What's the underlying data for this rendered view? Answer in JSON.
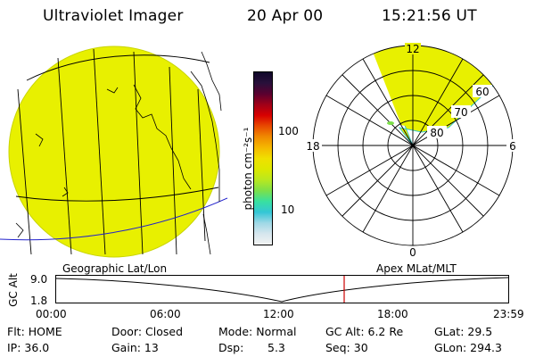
{
  "header": {
    "instrument": "Ultraviolet Imager",
    "date": "20 Apr 00",
    "time": "15:21:56 UT"
  },
  "colorbar": {
    "unit_label": "photon cm⁻²s⁻¹",
    "tick_100": "100",
    "tick_10": "10",
    "colors": [
      "#f2f2f2",
      "#d6e6ee",
      "#9fd8e6",
      "#34c6d6",
      "#38e0a0",
      "#7ce04a",
      "#b8e820",
      "#dde800",
      "#f0e000",
      "#f5b800",
      "#f08a00",
      "#e84a00",
      "#d80000",
      "#a00018",
      "#5a0030",
      "#28103a",
      "#10082a"
    ]
  },
  "polar_plot": {
    "label_top": "12",
    "label_bottom": "0",
    "label_left": "18",
    "label_right": "6",
    "ring_labels": [
      "60",
      "70",
      "80"
    ]
  },
  "geo_plot": {
    "fill_color": "#e8f000"
  },
  "timeline": {
    "left_label": "Geographic Lat/Lon",
    "right_label": "Apex MLat/MLT",
    "axis_title": "GC Alt",
    "y_top": "9.0",
    "y_bottom": "1.8",
    "ticks": [
      "00:00",
      "06:00",
      "12:00",
      "18:00",
      "23:59"
    ],
    "current_marker_color": "#cc0000"
  },
  "status": {
    "flt": "Flt: HOME",
    "ip": "IP: 36.0",
    "door": "Door: Closed",
    "gain": "Gain: 13",
    "mode": "Mode: Normal",
    "dsp_label": "Dsp:",
    "dsp_value": "5.3",
    "gc_alt": "GC Alt: 6.2 Re",
    "seq": "Seq: 30",
    "glat": "GLat:  29.5",
    "glon": "GLon: 294.3"
  }
}
